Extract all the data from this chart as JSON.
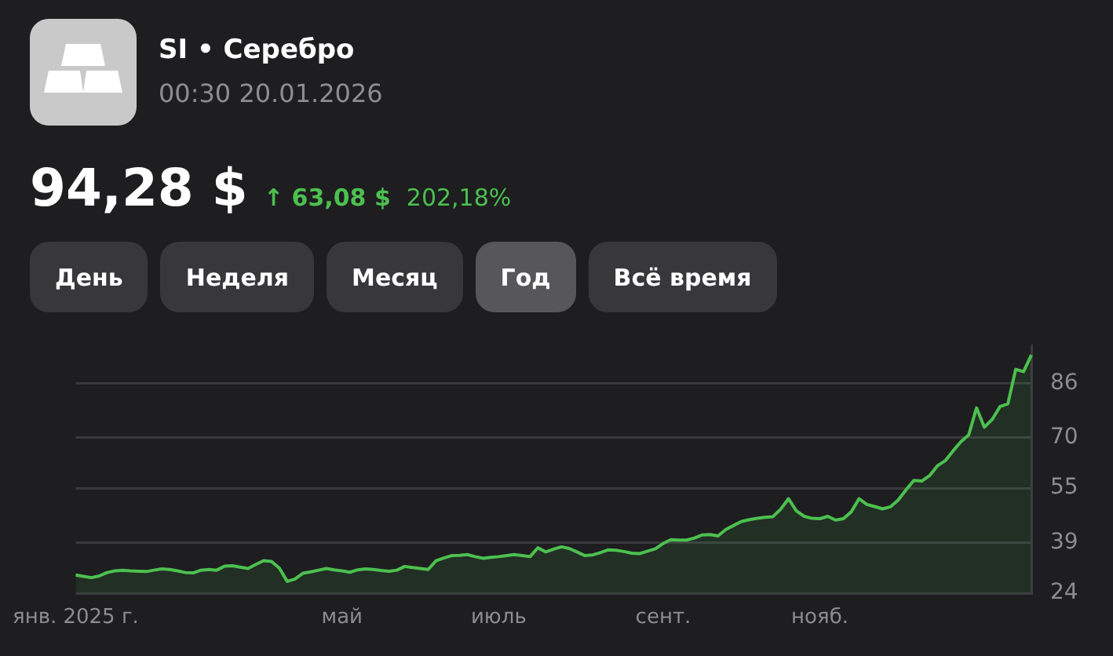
{
  "chart_data": {
    "type": "area",
    "title": "SI • Серебро",
    "subtitle": "00:30 20.01.2026",
    "annotations": [
      "94,28 $",
      "↑ 63,08 $",
      "202,18%",
      "День",
      "Неделя",
      "Месяц",
      "Год",
      "Всё время"
    ],
    "categories": [
      "янв. 2025 г.",
      null,
      null,
      null,
      null,
      null,
      null,
      null,
      null,
      null,
      null,
      null,
      null,
      null,
      null,
      null,
      null,
      null,
      null,
      null,
      null,
      null,
      null,
      null,
      null,
      null,
      null,
      null,
      null,
      null,
      null,
      null,
      null,
      null,
      "май",
      null,
      null,
      null,
      null,
      null,
      null,
      null,
      null,
      null,
      null,
      null,
      null,
      null,
      null,
      null,
      null,
      null,
      null,
      null,
      "июль",
      null,
      null,
      null,
      null,
      null,
      null,
      null,
      null,
      null,
      null,
      null,
      null,
      null,
      null,
      null,
      null,
      null,
      null,
      null,
      null,
      "сент.",
      null,
      null,
      null,
      null,
      null,
      null,
      null,
      null,
      null,
      null,
      null,
      null,
      null,
      null,
      null,
      null,
      null,
      null,
      null,
      "нояб.",
      null,
      null,
      null,
      null,
      null,
      null,
      null,
      null,
      null,
      null,
      null,
      null,
      null,
      null,
      null,
      null,
      null,
      null,
      null,
      null,
      null,
      null,
      null,
      null,
      null,
      null,
      null
    ],
    "series": [
      {
        "color": "#4cc04f",
        "values": [
          29.4,
          29.0,
          28.6,
          29.1,
          30.1,
          30.6,
          30.8,
          30.6,
          30.5,
          30.4,
          30.8,
          31.2,
          31.0,
          30.6,
          30.1,
          30.0,
          30.8,
          31.0,
          30.8,
          32.0,
          32.1,
          31.7,
          31.3,
          32.5,
          33.6,
          33.4,
          31.4,
          27.5,
          28.2,
          29.9,
          30.3,
          30.8,
          31.3,
          30.9,
          30.6,
          30.2,
          30.9,
          31.2,
          31.0,
          30.7,
          30.5,
          30.8,
          31.9,
          31.6,
          31.3,
          31.0,
          33.6,
          34.4,
          35.1,
          35.2,
          35.4,
          34.8,
          34.3,
          34.6,
          34.8,
          35.1,
          35.4,
          35.1,
          34.8,
          37.4,
          36.2,
          37.0,
          37.7,
          37.2,
          36.2,
          35.1,
          35.3,
          36.0,
          36.8,
          36.7,
          36.3,
          35.8,
          35.7,
          36.4,
          37.1,
          38.7,
          39.8,
          39.7,
          39.7,
          40.3,
          41.2,
          41.3,
          40.9,
          42.8,
          44.0,
          45.2,
          45.7,
          46.1,
          46.4,
          46.6,
          48.8,
          51.9,
          48.3,
          46.7,
          46.1,
          46.0,
          46.7,
          45.6,
          46.0,
          48.0,
          51.9,
          50.2,
          49.6,
          48.9,
          49.5,
          51.5,
          54.5,
          57.3,
          57.1,
          58.7,
          61.6,
          63.1,
          66.0,
          68.7,
          70.7,
          78.7,
          73.0,
          75.3,
          79.1,
          79.9,
          90.1,
          89.4,
          94.3
        ]
      }
    ],
    "ylim": [
      24,
      97
    ],
    "yticks": [
      24,
      39,
      55,
      70,
      86
    ],
    "grid": "y"
  }
}
